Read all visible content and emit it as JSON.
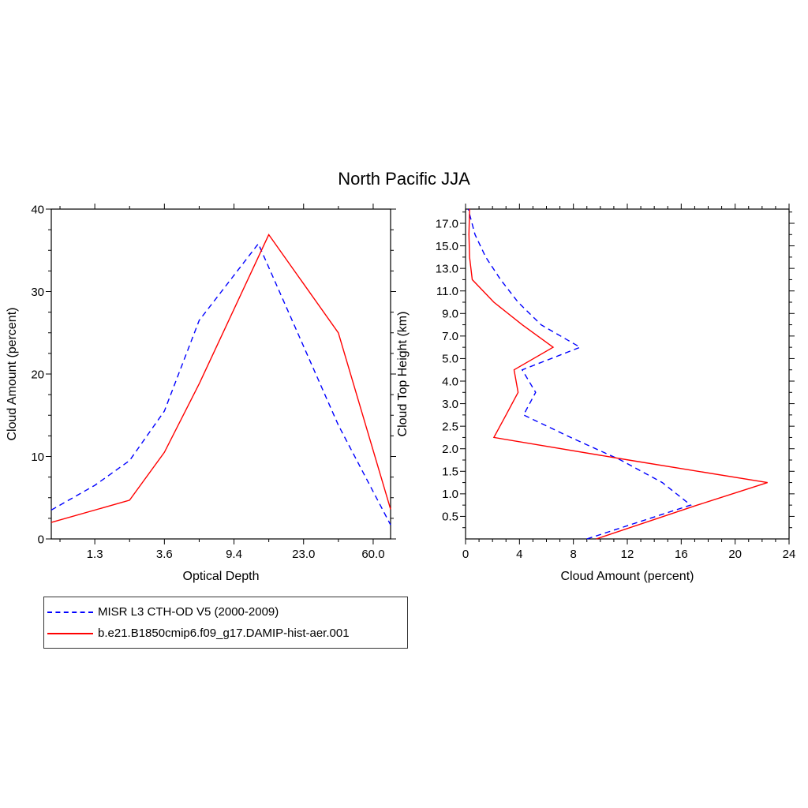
{
  "title": "North Pacific JJA",
  "legend": {
    "entries": [
      {
        "label": "MISR L3 CTH-OD V5 (2000-2009)",
        "color": "#0000ff",
        "style": "dashed"
      },
      {
        "label": "b.e21.B1850cmip6.f09_g17.DAMIP-hist-aer.001",
        "color": "#ff0000",
        "style": "solid"
      }
    ]
  },
  "chart_data": [
    {
      "type": "line",
      "panel": "left",
      "xlabel": "Optical Depth",
      "ylabel": "Cloud Amount (percent)",
      "x_tick_labels": [
        "1.3",
        "3.6",
        "9.4",
        "23.0",
        "60.0"
      ],
      "x_tick_positions": [
        1,
        2,
        3,
        4,
        5
      ],
      "xlim": [
        0.375,
        5.25
      ],
      "y_ticks": [
        0,
        10,
        20,
        30,
        40
      ],
      "y_tick_labels": [
        "0",
        "10",
        "20",
        "30",
        "40"
      ],
      "ylim": [
        0,
        40
      ],
      "note": "x in tick-index units; ticks 1-5 correspond to optical depths 1.3-60.0",
      "series": [
        {
          "name": "MISR L3 CTH-OD V5 (2000-2009)",
          "color": "#0000ff",
          "dashed": true,
          "x": [
            0.375,
            1.0,
            1.5,
            2.0,
            2.5,
            3.35,
            4.5,
            5.25
          ],
          "y": [
            3.5,
            6.5,
            9.5,
            15.5,
            26.5,
            35.8,
            13.8,
            1.7
          ]
        },
        {
          "name": "b.e21.B1850cmip6.f09_g17.DAMIP-hist-aer.001",
          "color": "#ff0000",
          "dashed": false,
          "x": [
            0.375,
            1.5,
            2.0,
            2.5,
            3.5,
            4.5,
            5.25
          ],
          "y": [
            2.0,
            4.7,
            10.5,
            18.8,
            36.9,
            25.0,
            3.6
          ]
        }
      ]
    },
    {
      "type": "line",
      "panel": "right",
      "xlabel": "Cloud Amount (percent)",
      "ylabel": "Cloud Top Height (km)",
      "x_ticks": [
        0,
        4,
        8,
        12,
        16,
        20,
        24
      ],
      "x_tick_labels": [
        "0",
        "4",
        "8",
        "12",
        "16",
        "20",
        "24"
      ],
      "xlim": [
        0,
        24
      ],
      "y_tick_labels": [
        "0.5",
        "1.0",
        "1.5",
        "2.0",
        "2.5",
        "3.0",
        "4.0",
        "5.0",
        "7.0",
        "9.0",
        "11.0",
        "13.0",
        "15.0",
        "17.0"
      ],
      "ylim_index": [
        -1.0,
        13.63
      ],
      "note": "y in tick-index units; indices 0-13 correspond to heights 0.5-17.0 km",
      "series": [
        {
          "name": "MISR L3 CTH-OD V5 (2000-2009)",
          "color": "#0000ff",
          "dashed": true,
          "x": [
            9.0,
            16.7,
            14.6,
            11.5,
            7.8,
            4.3,
            5.2,
            4.2,
            8.5,
            5.6,
            3.9,
            2.6,
            1.5,
            0.7,
            0.2
          ],
          "y": [
            -1.0,
            0.5,
            1.5,
            2.5,
            3.5,
            4.5,
            5.5,
            6.5,
            7.5,
            8.5,
            9.5,
            10.5,
            11.5,
            12.5,
            13.63
          ]
        },
        {
          "name": "b.e21.B1850cmip6.f09_g17.DAMIP-hist-aer.001",
          "color": "#ff0000",
          "dashed": false,
          "x": [
            9.7,
            17.2,
            22.4,
            12.1,
            2.1,
            3.0,
            3.9,
            3.6,
            6.5,
            4.2,
            2.1,
            0.5,
            0.3,
            0.25,
            0.3
          ],
          "y": [
            -1.0,
            0.5,
            1.5,
            2.5,
            3.5,
            4.5,
            5.5,
            6.5,
            7.5,
            8.5,
            9.5,
            10.5,
            11.5,
            12.5,
            13.63
          ]
        }
      ]
    }
  ]
}
